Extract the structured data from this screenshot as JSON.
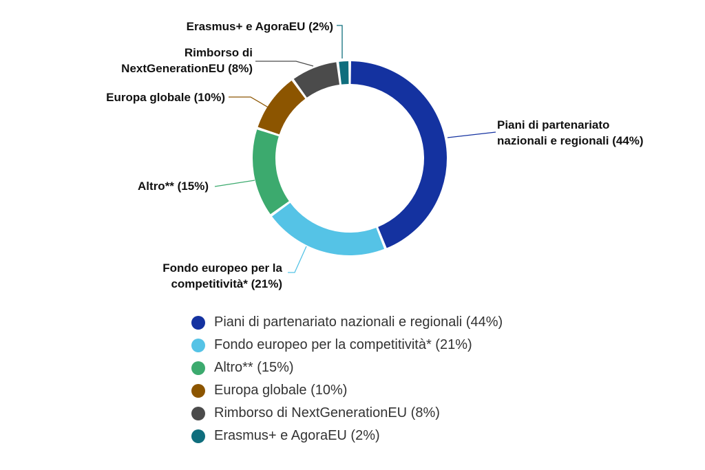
{
  "chart_data": {
    "type": "pie",
    "donut": true,
    "title": "",
    "slices": [
      {
        "label": "Piani di partenariato nazionali e regionali (44%)",
        "callout_lines": [
          "Piani di partenariato",
          "nazionali e regionali (44%)"
        ],
        "value": 44,
        "color": "#1432A0"
      },
      {
        "label": "Fondo europeo per la competitività* (21%)",
        "callout_lines": [
          "Fondo europeo per la",
          "competitività* (21%)"
        ],
        "value": 21,
        "color": "#55C3E6"
      },
      {
        "label": "Altro** (15%)",
        "callout_lines": [
          "Altro** (15%)"
        ],
        "value": 15,
        "color": "#3CAA6E"
      },
      {
        "label": "Europa globale (10%)",
        "callout_lines": [
          "Europa globale (10%)"
        ],
        "value": 10,
        "color": "#8C5500"
      },
      {
        "label": "Rimborso di NextGenerationEU (8%)",
        "callout_lines": [
          "Rimborso di",
          "NextGenerationEU (8%)"
        ],
        "value": 8,
        "color": "#4B4B4B"
      },
      {
        "label": "Erasmus+ e AgoraEU (2%)",
        "callout_lines": [
          "Erasmus+ e AgoraEU (2%)"
        ],
        "value": 2,
        "color": "#0F6E7D"
      }
    ],
    "legend_position": "bottom"
  }
}
